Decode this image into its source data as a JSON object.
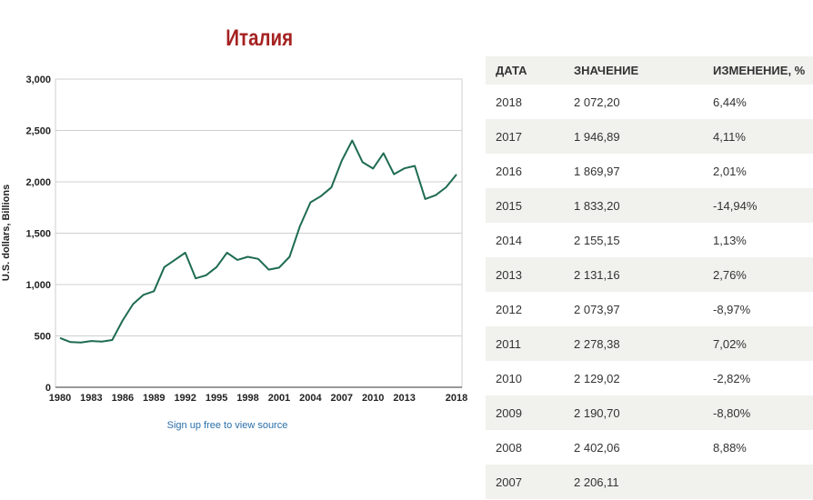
{
  "chart_data": {
    "type": "line",
    "title": "Италия",
    "ylabel": "U.S. dollars, Billions",
    "xlabel": "",
    "ylim": [
      0,
      3000
    ],
    "xlim": [
      1980,
      2018
    ],
    "yticks": [
      0,
      500,
      1000,
      1500,
      2000,
      2500,
      3000
    ],
    "ytick_labels": [
      "0",
      "500",
      "1,000",
      "1,500",
      "2,000",
      "2,500",
      "3,000"
    ],
    "xticks": [
      1980,
      1983,
      1986,
      1989,
      1992,
      1995,
      1998,
      2001,
      2004,
      2007,
      2010,
      2013,
      2018
    ],
    "grid": true,
    "series": [
      {
        "color": "#1e6b52",
        "x": [
          1980,
          1981,
          1982,
          1983,
          1984,
          1985,
          1986,
          1987,
          1988,
          1989,
          1990,
          1991,
          1992,
          1993,
          1994,
          1995,
          1996,
          1997,
          1998,
          1999,
          2000,
          2001,
          2002,
          2003,
          2004,
          2005,
          2006,
          2007,
          2008,
          2009,
          2010,
          2011,
          2012,
          2013,
          2014,
          2015,
          2016,
          2017,
          2018
        ],
        "y": [
          480,
          440,
          435,
          450,
          445,
          460,
          650,
          810,
          900,
          935,
          1170,
          1240,
          1310,
          1060,
          1090,
          1170,
          1310,
          1240,
          1270,
          1250,
          1145,
          1165,
          1270,
          1570,
          1800,
          1860,
          1945,
          2206,
          2402,
          2191,
          2129,
          2278,
          2074,
          2131,
          2155,
          1833,
          1870,
          1947,
          2072
        ]
      }
    ]
  },
  "source_link": "Sign up free to view source",
  "table": {
    "headers": [
      "ДАТА",
      "ЗНАЧЕНИЕ",
      "ИЗМЕНЕНИЕ, %"
    ],
    "rows": [
      [
        "2018",
        "2 072,20",
        "6,44%"
      ],
      [
        "2017",
        "1 946,89",
        "4,11%"
      ],
      [
        "2016",
        "1 869,97",
        "2,01%"
      ],
      [
        "2015",
        "1 833,20",
        "-14,94%"
      ],
      [
        "2014",
        "2 155,15",
        "1,13%"
      ],
      [
        "2013",
        "2 131,16",
        "2,76%"
      ],
      [
        "2012",
        "2 073,97",
        "-8,97%"
      ],
      [
        "2011",
        "2 278,38",
        "7,02%"
      ],
      [
        "2010",
        "2 129,02",
        "-2,82%"
      ],
      [
        "2009",
        "2 190,70",
        "-8,80%"
      ],
      [
        "2008",
        "2 402,06",
        "8,88%"
      ],
      [
        "2007",
        "2 206,11",
        ""
      ]
    ]
  }
}
